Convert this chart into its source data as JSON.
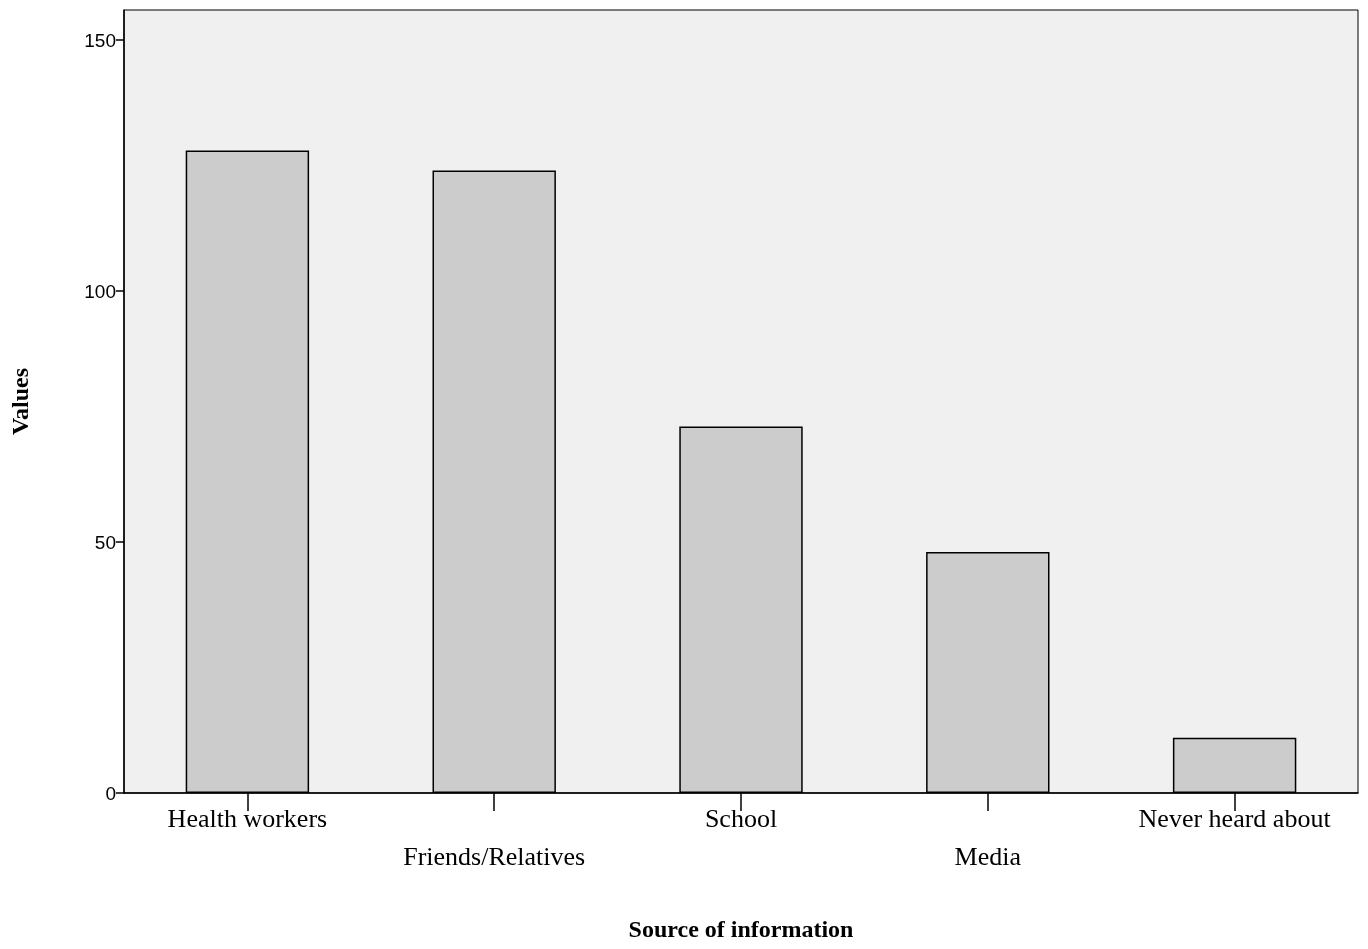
{
  "chart_data": {
    "type": "bar",
    "xlabel": "Source of information",
    "ylabel": "Values",
    "categories": [
      "Health workers",
      "Friends/Relatives",
      "School",
      "Media",
      "Never heard about"
    ],
    "values": [
      128,
      124,
      73,
      48,
      11
    ],
    "color": "#cccccc",
    "ylim": [
      0,
      156
    ],
    "yticks": [
      0,
      50,
      100,
      150
    ],
    "grid": false
  }
}
